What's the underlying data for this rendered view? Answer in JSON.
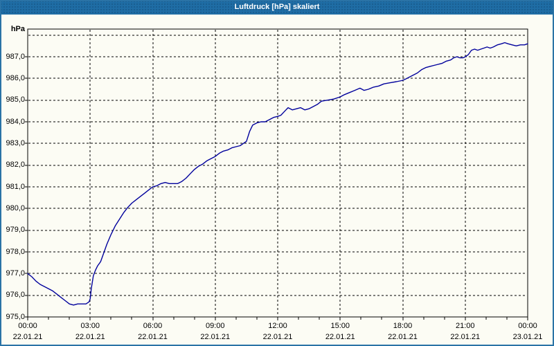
{
  "window": {
    "title": "Luftdruck [hPa] skaliert"
  },
  "colors": {
    "titlebar_bg": "#1f6da5",
    "titlebar_text": "#ffffff",
    "window_border": "#2a73a6",
    "content_bg": "#fcfcf4",
    "line": "#00009c",
    "grid": "#000000",
    "text": "#000000"
  },
  "chart_data": {
    "type": "line",
    "title": "Luftdruck [hPa] skaliert",
    "y_unit_label": "hPa",
    "grid": "dashed",
    "legend": "none",
    "y_axis": {
      "min": 975.0,
      "max": 988.3,
      "tick_step": 1.0,
      "ticks": [
        {
          "value": 987,
          "label": "987,0"
        },
        {
          "value": 986,
          "label": "986,0"
        },
        {
          "value": 985,
          "label": "985,0"
        },
        {
          "value": 984,
          "label": "984,0"
        },
        {
          "value": 983,
          "label": "983,0"
        },
        {
          "value": 982,
          "label": "982,0"
        },
        {
          "value": 981,
          "label": "981,0"
        },
        {
          "value": 980,
          "label": "980,0"
        },
        {
          "value": 979,
          "label": "979,0"
        },
        {
          "value": 978,
          "label": "978,0"
        },
        {
          "value": 977,
          "label": "977,0"
        },
        {
          "value": 976,
          "label": "976,0"
        },
        {
          "value": 975,
          "label": "975,0"
        }
      ],
      "unlabeled_grid_values": [
        976,
        977,
        978,
        979,
        980,
        981,
        982,
        983,
        984,
        985,
        986,
        987,
        988
      ]
    },
    "x_axis": {
      "start_hour": 0,
      "end_hour": 24,
      "major_tick_hours": 3,
      "minor_tick_hours": 1,
      "ticks": [
        {
          "hour": 0,
          "time": "00:00",
          "date": "22.01.21"
        },
        {
          "hour": 3,
          "time": "03:00",
          "date": "22.01.21"
        },
        {
          "hour": 6,
          "time": "06:00",
          "date": "22.01.21"
        },
        {
          "hour": 9,
          "time": "09:00",
          "date": "22.01.21"
        },
        {
          "hour": 12,
          "time": "12:00",
          "date": "22.01.21"
        },
        {
          "hour": 15,
          "time": "15:00",
          "date": "22.01.21"
        },
        {
          "hour": 18,
          "time": "18:00",
          "date": "22.01.21"
        },
        {
          "hour": 21,
          "time": "21:00",
          "date": "22.01.21"
        },
        {
          "hour": 24,
          "time": "00:00",
          "date": "23.01.21"
        }
      ]
    },
    "series": [
      {
        "name": "Luftdruck",
        "color": "#00009c",
        "points": [
          [
            0.0,
            977.0
          ],
          [
            0.2,
            976.85
          ],
          [
            0.4,
            976.65
          ],
          [
            0.6,
            976.5
          ],
          [
            0.8,
            976.4
          ],
          [
            1.0,
            976.3
          ],
          [
            1.2,
            976.2
          ],
          [
            1.4,
            976.05
          ],
          [
            1.6,
            975.9
          ],
          [
            1.8,
            975.75
          ],
          [
            2.0,
            975.6
          ],
          [
            2.2,
            975.55
          ],
          [
            2.4,
            975.6
          ],
          [
            2.6,
            975.6
          ],
          [
            2.8,
            975.6
          ],
          [
            2.95,
            975.7
          ],
          [
            3.0,
            975.85
          ],
          [
            3.05,
            976.3
          ],
          [
            3.15,
            976.9
          ],
          [
            3.25,
            977.15
          ],
          [
            3.35,
            977.35
          ],
          [
            3.5,
            977.55
          ],
          [
            3.65,
            977.95
          ],
          [
            3.8,
            978.35
          ],
          [
            4.0,
            978.8
          ],
          [
            4.2,
            979.2
          ],
          [
            4.4,
            979.5
          ],
          [
            4.6,
            979.8
          ],
          [
            4.8,
            980.05
          ],
          [
            5.0,
            980.25
          ],
          [
            5.2,
            980.4
          ],
          [
            5.4,
            980.55
          ],
          [
            5.6,
            980.7
          ],
          [
            5.8,
            980.85
          ],
          [
            6.0,
            981.0
          ],
          [
            6.2,
            981.05
          ],
          [
            6.4,
            981.15
          ],
          [
            6.6,
            981.2
          ],
          [
            6.8,
            981.15
          ],
          [
            7.0,
            981.15
          ],
          [
            7.2,
            981.15
          ],
          [
            7.4,
            981.25
          ],
          [
            7.6,
            981.4
          ],
          [
            7.8,
            981.6
          ],
          [
            8.0,
            981.8
          ],
          [
            8.2,
            981.95
          ],
          [
            8.4,
            982.05
          ],
          [
            8.6,
            982.2
          ],
          [
            8.8,
            982.3
          ],
          [
            9.0,
            982.4
          ],
          [
            9.2,
            982.55
          ],
          [
            9.4,
            982.65
          ],
          [
            9.6,
            982.7
          ],
          [
            9.8,
            982.8
          ],
          [
            10.0,
            982.85
          ],
          [
            10.2,
            982.9
          ],
          [
            10.35,
            983.0
          ],
          [
            10.5,
            983.1
          ],
          [
            10.65,
            983.55
          ],
          [
            10.8,
            983.85
          ],
          [
            11.0,
            983.95
          ],
          [
            11.2,
            984.0
          ],
          [
            11.4,
            984.0
          ],
          [
            11.6,
            984.1
          ],
          [
            11.8,
            984.2
          ],
          [
            12.0,
            984.25
          ],
          [
            12.15,
            984.3
          ],
          [
            12.35,
            984.5
          ],
          [
            12.5,
            984.65
          ],
          [
            12.7,
            984.55
          ],
          [
            12.9,
            984.6
          ],
          [
            13.1,
            984.65
          ],
          [
            13.3,
            984.55
          ],
          [
            13.5,
            984.6
          ],
          [
            13.7,
            984.7
          ],
          [
            13.9,
            984.8
          ],
          [
            14.1,
            984.95
          ],
          [
            14.4,
            985.0
          ],
          [
            14.7,
            985.05
          ],
          [
            15.0,
            985.15
          ],
          [
            15.2,
            985.25
          ],
          [
            15.45,
            985.35
          ],
          [
            15.7,
            985.45
          ],
          [
            15.95,
            985.55
          ],
          [
            16.15,
            985.45
          ],
          [
            16.35,
            985.5
          ],
          [
            16.6,
            985.6
          ],
          [
            16.85,
            985.65
          ],
          [
            17.1,
            985.75
          ],
          [
            17.4,
            985.8
          ],
          [
            17.7,
            985.85
          ],
          [
            17.95,
            985.9
          ],
          [
            18.1,
            985.95
          ],
          [
            18.3,
            986.05
          ],
          [
            18.5,
            986.15
          ],
          [
            18.7,
            986.25
          ],
          [
            18.9,
            986.4
          ],
          [
            19.1,
            986.5
          ],
          [
            19.3,
            986.55
          ],
          [
            19.5,
            986.6
          ],
          [
            19.7,
            986.65
          ],
          [
            19.9,
            986.7
          ],
          [
            20.1,
            986.8
          ],
          [
            20.3,
            986.85
          ],
          [
            20.45,
            986.95
          ],
          [
            20.6,
            987.0
          ],
          [
            20.75,
            986.95
          ],
          [
            20.9,
            986.95
          ],
          [
            21.0,
            987.0
          ],
          [
            21.15,
            987.1
          ],
          [
            21.3,
            987.3
          ],
          [
            21.45,
            987.35
          ],
          [
            21.6,
            987.3
          ],
          [
            21.75,
            987.35
          ],
          [
            21.9,
            987.4
          ],
          [
            22.05,
            987.45
          ],
          [
            22.2,
            987.4
          ],
          [
            22.35,
            987.45
          ],
          [
            22.55,
            987.55
          ],
          [
            22.75,
            987.6
          ],
          [
            22.9,
            987.65
          ],
          [
            23.05,
            987.6
          ],
          [
            23.25,
            987.55
          ],
          [
            23.45,
            987.5
          ],
          [
            23.65,
            987.55
          ],
          [
            23.85,
            987.55
          ],
          [
            24.0,
            987.6
          ]
        ]
      }
    ]
  }
}
